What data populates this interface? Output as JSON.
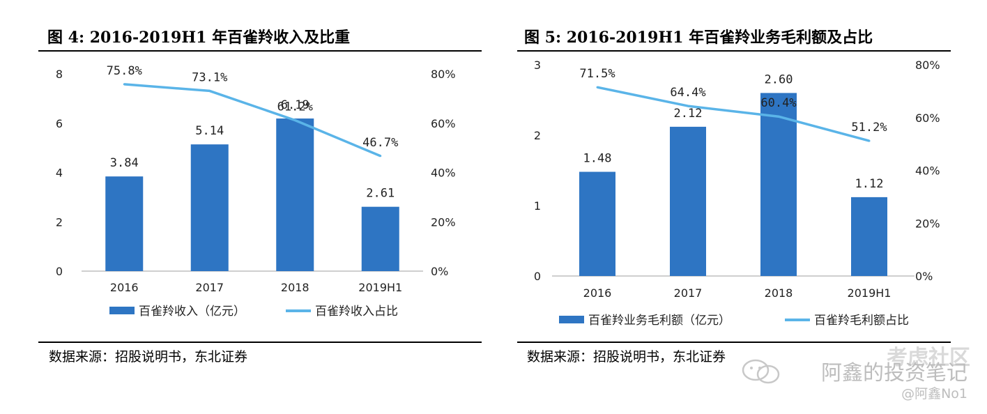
{
  "chart_data": [
    {
      "type": "bar",
      "figure_title": "图 4:  2016-2019H1 年百雀羚收入及比重",
      "source": "数据来源：招股说明书，东北证券",
      "categories": [
        "2016",
        "2017",
        "2018",
        "2019H1"
      ],
      "series": [
        {
          "name": "百雀羚收入（亿元）",
          "type": "bar",
          "axis": "left",
          "values": [
            3.84,
            5.14,
            6.19,
            2.61
          ],
          "labels": [
            "3.84",
            "5.14",
            "6.19",
            "2.61"
          ]
        },
        {
          "name": "百雀羚收入占比",
          "type": "line",
          "axis": "right",
          "values": [
            75.8,
            73.1,
            61.2,
            46.7
          ],
          "labels": [
            "75.8%",
            "73.1%",
            "61.2%",
            "46.7%"
          ]
        }
      ],
      "y_left": {
        "min": 0,
        "max": 8,
        "ticks": [
          "0",
          "2",
          "4",
          "6",
          "8"
        ]
      },
      "y_right": {
        "min": 0,
        "max": 80,
        "ticks": [
          "0%",
          "20%",
          "40%",
          "60%",
          "80%"
        ]
      },
      "grid": false,
      "legend": "bottom",
      "colors": {
        "bar": "#2e75c3",
        "line": "#5ab4e8"
      }
    },
    {
      "type": "bar",
      "figure_title": "图 5:  2016-2019H1 年百雀羚业务毛利额及占比",
      "source": "数据来源：招股说明书，东北证券",
      "categories": [
        "2016",
        "2017",
        "2018",
        "2019H1"
      ],
      "series": [
        {
          "name": "百雀羚业务毛利额（亿元）",
          "type": "bar",
          "axis": "left",
          "values": [
            1.48,
            2.12,
            2.6,
            1.12
          ],
          "labels": [
            "1.48",
            "2.12",
            "2.60",
            "1.12"
          ]
        },
        {
          "name": "百雀羚毛利额占比",
          "type": "line",
          "axis": "right",
          "values": [
            71.5,
            64.4,
            60.4,
            51.2
          ],
          "labels": [
            "71.5%",
            "64.4%",
            "60.4%",
            "51.2%"
          ]
        }
      ],
      "y_left": {
        "min": 0,
        "max": 3,
        "ticks": [
          "0",
          "1",
          "2",
          "3"
        ]
      },
      "y_right": {
        "min": 0,
        "max": 80,
        "ticks": [
          "0%",
          "20%",
          "40%",
          "60%",
          "80%"
        ]
      },
      "grid": false,
      "legend": "bottom",
      "colors": {
        "bar": "#2e75c3",
        "line": "#5ab4e8"
      }
    }
  ],
  "watermark": {
    "brand": "考虑社区",
    "account": "阿鑫的投资笔记",
    "handle": "@阿鑫No1",
    "icon": "wechat-icon"
  }
}
